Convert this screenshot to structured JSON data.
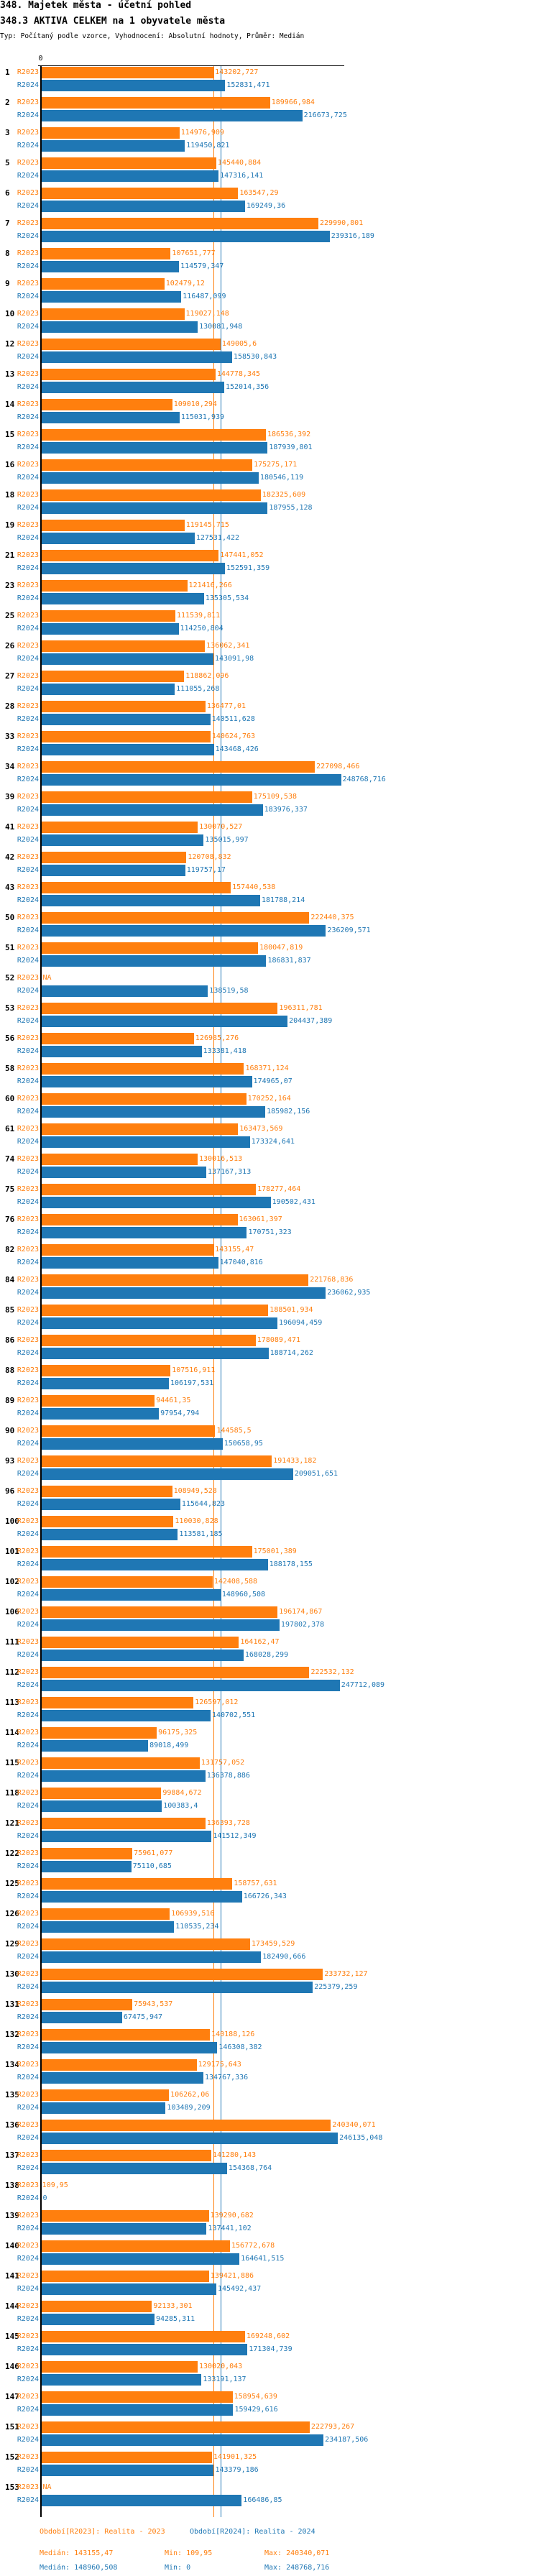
{
  "header": {
    "title": "348. Majetek města - účetní pohled",
    "subtitle": "348.3 AKTIVA CELKEM na 1 obyvatele města",
    "info": "Typ: Počítaný podle vzorce, Vyhodnocení: Absolutní hodnoty, Průměr: Medián"
  },
  "chart_data": {
    "type": "bar",
    "orientation": "horizontal",
    "xlim": [
      0,
      248768.716
    ],
    "x_tick_labels": [
      "0"
    ],
    "grid": false,
    "legend_placement": "bottom",
    "series": [
      {
        "key": "r2023",
        "label": "R2023",
        "name": "Období[R2023]: Realita - 2023",
        "color": "#ff7f0e",
        "median_label": "Medián: 143155,47",
        "min_label": "Min: 109,95",
        "max_label": "Max: 240340,071",
        "median": 143155.47
      },
      {
        "key": "r2024",
        "label": "R2024",
        "name": "Období[R2024]: Realita - 2024",
        "color": "#1f77b4",
        "median_label": "Medián: 148960,508",
        "min_label": "Min: 0",
        "max_label": "Max: 248768,716",
        "median": 148960.508
      }
    ],
    "rows": [
      {
        "id": "1",
        "r2023": "143202,727",
        "r2024": "152831,471"
      },
      {
        "id": "2",
        "r2023": "189966,984",
        "r2024": "216673,725"
      },
      {
        "id": "3",
        "r2023": "114976,909",
        "r2024": "119450,821"
      },
      {
        "id": "5",
        "r2023": "145440,884",
        "r2024": "147316,141"
      },
      {
        "id": "6",
        "r2023": "163547,29",
        "r2024": "169249,36"
      },
      {
        "id": "7",
        "r2023": "229990,801",
        "r2024": "239316,189"
      },
      {
        "id": "8",
        "r2023": "107651,777",
        "r2024": "114579,347"
      },
      {
        "id": "9",
        "r2023": "102479,12",
        "r2024": "116487,099"
      },
      {
        "id": "10",
        "r2023": "119027,148",
        "r2024": "130081,948"
      },
      {
        "id": "12",
        "r2023": "149005,6",
        "r2024": "158530,843"
      },
      {
        "id": "13",
        "r2023": "144778,345",
        "r2024": "152014,356"
      },
      {
        "id": "14",
        "r2023": "109010,294",
        "r2024": "115031,939"
      },
      {
        "id": "15",
        "r2023": "186536,392",
        "r2024": "187939,801"
      },
      {
        "id": "16",
        "r2023": "175275,171",
        "r2024": "180546,119"
      },
      {
        "id": "18",
        "r2023": "182325,609",
        "r2024": "187955,128"
      },
      {
        "id": "19",
        "r2023": "119145,715",
        "r2024": "127531,422"
      },
      {
        "id": "21",
        "r2023": "147441,052",
        "r2024": "152591,359"
      },
      {
        "id": "23",
        "r2023": "121416,266",
        "r2024": "135305,534"
      },
      {
        "id": "25",
        "r2023": "111539,811",
        "r2024": "114250,804"
      },
      {
        "id": "26",
        "r2023": "136062,341",
        "r2024": "143091,98"
      },
      {
        "id": "27",
        "r2023": "118862,096",
        "r2024": "111055,268"
      },
      {
        "id": "28",
        "r2023": "136477,01",
        "r2024": "140511,628"
      },
      {
        "id": "33",
        "r2023": "140624,763",
        "r2024": "143468,426"
      },
      {
        "id": "34",
        "r2023": "227098,466",
        "r2024": "248768,716"
      },
      {
        "id": "39",
        "r2023": "175109,538",
        "r2024": "183976,337"
      },
      {
        "id": "41",
        "r2023": "130070,527",
        "r2024": "135015,997"
      },
      {
        "id": "42",
        "r2023": "120708,832",
        "r2024": "119757,17"
      },
      {
        "id": "43",
        "r2023": "157440,538",
        "r2024": "181788,214"
      },
      {
        "id": "50",
        "r2023": "222440,375",
        "r2024": "236209,571"
      },
      {
        "id": "51",
        "r2023": "180047,819",
        "r2024": "186831,837"
      },
      {
        "id": "52",
        "r2023": "NA",
        "r2024": "138519,58"
      },
      {
        "id": "53",
        "r2023": "196311,781",
        "r2024": "204437,389"
      },
      {
        "id": "56",
        "r2023": "126985,276",
        "r2024": "133381,418"
      },
      {
        "id": "58",
        "r2023": "168371,124",
        "r2024": "174965,07"
      },
      {
        "id": "60",
        "r2023": "170252,164",
        "r2024": "185982,156"
      },
      {
        "id": "61",
        "r2023": "163473,569",
        "r2024": "173324,641"
      },
      {
        "id": "74",
        "r2023": "130016,513",
        "r2024": "137167,313"
      },
      {
        "id": "75",
        "r2023": "178277,464",
        "r2024": "190502,431"
      },
      {
        "id": "76",
        "r2023": "163061,397",
        "r2024": "170751,323"
      },
      {
        "id": "82",
        "r2023": "143155,47",
        "r2024": "147040,816"
      },
      {
        "id": "84",
        "r2023": "221768,836",
        "r2024": "236062,935"
      },
      {
        "id": "85",
        "r2023": "188501,934",
        "r2024": "196094,459"
      },
      {
        "id": "86",
        "r2023": "178089,471",
        "r2024": "188714,262"
      },
      {
        "id": "88",
        "r2023": "107516,911",
        "r2024": "106197,531"
      },
      {
        "id": "89",
        "r2023": "94461,35",
        "r2024": "97954,794"
      },
      {
        "id": "90",
        "r2023": "144585,5",
        "r2024": "150658,95"
      },
      {
        "id": "93",
        "r2023": "191433,182",
        "r2024": "209051,651"
      },
      {
        "id": "96",
        "r2023": "108949,528",
        "r2024": "115644,823"
      },
      {
        "id": "100",
        "r2023": "110030,828",
        "r2024": "113581,185"
      },
      {
        "id": "101",
        "r2023": "175001,389",
        "r2024": "188178,155"
      },
      {
        "id": "102",
        "r2023": "142408,588",
        "r2024": "148960,508"
      },
      {
        "id": "106",
        "r2023": "196174,867",
        "r2024": "197802,378"
      },
      {
        "id": "111",
        "r2023": "164162,47",
        "r2024": "168028,299"
      },
      {
        "id": "112",
        "r2023": "222532,132",
        "r2024": "247712,089"
      },
      {
        "id": "113",
        "r2023": "126597,012",
        "r2024": "140702,551"
      },
      {
        "id": "114",
        "r2023": "96175,325",
        "r2024": "89018,499"
      },
      {
        "id": "115",
        "r2023": "131757,052",
        "r2024": "136378,886"
      },
      {
        "id": "118",
        "r2023": "99884,672",
        "r2024": "100383,4"
      },
      {
        "id": "121",
        "r2023": "136393,728",
        "r2024": "141512,349"
      },
      {
        "id": "122",
        "r2023": "75961,077",
        "r2024": "75110,685"
      },
      {
        "id": "125",
        "r2023": "158757,631",
        "r2024": "166726,343"
      },
      {
        "id": "126",
        "r2023": "106939,516",
        "r2024": "110535,234"
      },
      {
        "id": "129",
        "r2023": "173459,529",
        "r2024": "182490,666"
      },
      {
        "id": "130",
        "r2023": "233732,127",
        "r2024": "225379,259"
      },
      {
        "id": "131",
        "r2023": "75943,537",
        "r2024": "67475,947"
      },
      {
        "id": "132",
        "r2023": "140188,126",
        "r2024": "146308,382"
      },
      {
        "id": "134",
        "r2023": "129175,643",
        "r2024": "134767,336"
      },
      {
        "id": "135",
        "r2023": "106262,06",
        "r2024": "103489,209"
      },
      {
        "id": "136",
        "r2023": "240340,071",
        "r2024": "246135,048"
      },
      {
        "id": "137",
        "r2023": "141280,143",
        "r2024": "154368,764"
      },
      {
        "id": "138",
        "r2023": "109,95",
        "r2024": "0"
      },
      {
        "id": "139",
        "r2023": "139290,682",
        "r2024": "137441,102"
      },
      {
        "id": "140",
        "r2023": "156772,678",
        "r2024": "164641,515"
      },
      {
        "id": "141",
        "r2023": "139421,886",
        "r2024": "145492,437"
      },
      {
        "id": "144",
        "r2023": "92133,301",
        "r2024": "94285,311"
      },
      {
        "id": "145",
        "r2023": "169248,602",
        "r2024": "171304,739"
      },
      {
        "id": "146",
        "r2023": "130020,043",
        "r2024": "133191,137"
      },
      {
        "id": "147",
        "r2023": "158954,639",
        "r2024": "159429,616"
      },
      {
        "id": "151",
        "r2023": "222793,267",
        "r2024": "234187,506"
      },
      {
        "id": "152",
        "r2023": "141901,325",
        "r2024": "143379,186"
      },
      {
        "id": "153",
        "r2023": "NA",
        "r2024": "166486,85"
      }
    ]
  }
}
